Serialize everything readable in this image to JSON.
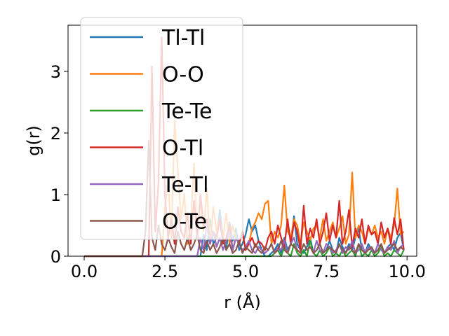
{
  "chart_data": {
    "type": "line",
    "title": "",
    "xlabel": "r (Å)",
    "ylabel": "g(r)",
    "xlim": [
      -0.5,
      10.3
    ],
    "ylim": [
      0,
      3.75
    ],
    "xticks": [
      0.0,
      2.5,
      5.0,
      7.5,
      10.0
    ],
    "xtick_labels": [
      "0.0",
      "2.5",
      "5.0",
      "7.5",
      "10.0"
    ],
    "yticks": [
      0,
      1,
      2,
      3
    ],
    "ytick_labels": [
      "0",
      "1",
      "2",
      "3"
    ],
    "grid": false,
    "legend_position": "top-left",
    "series": [
      {
        "name": "Tl-Tl",
        "color": "#1f77b4",
        "x": [
          0,
          3.6,
          3.7,
          3.8,
          3.9,
          4.0,
          4.1,
          4.2,
          4.3,
          4.4,
          4.5,
          4.6,
          4.7,
          4.8,
          4.9,
          5.0,
          5.1,
          5.2,
          5.3,
          5.4,
          5.5,
          5.6,
          5.7,
          5.8,
          5.9,
          6.0,
          6.1,
          6.2,
          6.3,
          6.4,
          6.5,
          6.6,
          6.7,
          6.8,
          6.9,
          7.0,
          7.1,
          7.2,
          7.3,
          7.4,
          7.5,
          7.6,
          7.7,
          7.8,
          7.9,
          8.0,
          8.1,
          8.2,
          8.3,
          8.4,
          8.5,
          8.6,
          8.7,
          8.8,
          8.9,
          9.0,
          9.1,
          9.2,
          9.3,
          9.4,
          9.5,
          9.6,
          9.7,
          9.8,
          9.9
        ],
        "y": [
          0,
          0,
          0.35,
          0.1,
          0.6,
          0.2,
          0.3,
          0.75,
          0.3,
          0.1,
          0.55,
          0.25,
          0.45,
          0.1,
          0.2,
          0.35,
          0.6,
          0.4,
          0.5,
          0.25,
          0.1,
          0.0,
          0.0,
          0.05,
          0.1,
          0.2,
          0.05,
          0.3,
          0.1,
          0.2,
          0.65,
          0.2,
          0.1,
          0.05,
          0.15,
          0.3,
          0.05,
          0.1,
          0.2,
          0.05,
          0.1,
          0.25,
          0.1,
          0.05,
          0.3,
          0.15,
          0.05,
          0.2,
          0.1,
          0.3,
          0.45,
          0.1,
          0.05,
          0.2,
          0.1,
          0.05,
          0.2,
          0.1,
          0.05,
          0.15,
          0.2,
          0.1,
          0.3,
          0.38,
          0.1
        ]
      },
      {
        "name": "O-O",
        "color": "#ff7f0e",
        "x": [
          0,
          2.4,
          2.5,
          2.6,
          2.7,
          2.8,
          2.9,
          3.0,
          3.1,
          3.2,
          3.3,
          3.4,
          3.5,
          3.6,
          3.7,
          3.8,
          3.9,
          4.0,
          4.1,
          4.2,
          4.3,
          4.4,
          4.5,
          4.6,
          4.7,
          4.8,
          4.9,
          5.0,
          5.1,
          5.2,
          5.3,
          5.4,
          5.5,
          5.6,
          5.7,
          5.8,
          5.9,
          6.0,
          6.1,
          6.2,
          6.3,
          6.4,
          6.5,
          6.6,
          6.7,
          6.8,
          6.9,
          7.0,
          7.1,
          7.2,
          7.3,
          7.4,
          7.5,
          7.6,
          7.7,
          7.8,
          7.9,
          8.0,
          8.1,
          8.2,
          8.3,
          8.4,
          8.5,
          8.6,
          8.7,
          8.8,
          8.9,
          9.0,
          9.1,
          9.2,
          9.3,
          9.4,
          9.5,
          9.6,
          9.7,
          9.8,
          9.9
        ],
        "y": [
          0,
          0,
          0.8,
          1.2,
          0.3,
          2.2,
          1.4,
          0.6,
          1.0,
          0.2,
          0.5,
          1.5,
          0.3,
          0.9,
          0.4,
          1.1,
          0.2,
          0.8,
          0.4,
          0.6,
          0.3,
          0.7,
          0.2,
          0.5,
          0.3,
          0.2,
          0.4,
          0.1,
          0.2,
          0.45,
          0.55,
          0.7,
          0.6,
          0.85,
          0.9,
          0.2,
          0.4,
          0.3,
          0.5,
          1.15,
          0.4,
          0.3,
          0.6,
          0.5,
          0.2,
          0.55,
          0.4,
          0.25,
          0.45,
          0.5,
          0.3,
          0.6,
          0.25,
          0.4,
          0.55,
          0.3,
          0.45,
          0.65,
          0.2,
          0.35,
          1.36,
          0.3,
          0.5,
          0.4,
          0.2,
          0.45,
          0.35,
          0.5,
          0.3,
          0.4,
          0.2,
          0.45,
          0.3,
          0.5,
          1.1,
          0.35,
          0.4
        ]
      },
      {
        "name": "Te-Te",
        "color": "#2ca02c",
        "x": [
          0,
          5.8,
          5.9,
          6.0,
          6.1,
          6.2,
          6.3,
          6.4,
          6.5,
          6.6,
          6.7,
          6.8,
          6.9,
          7.0,
          7.1,
          7.2,
          7.3,
          7.4,
          7.5,
          7.6,
          7.7,
          7.8,
          7.9,
          8.0,
          8.1,
          8.2,
          8.3,
          8.4,
          8.5,
          8.6,
          8.7,
          8.8,
          8.9,
          9.0,
          9.1,
          9.2,
          9.3,
          9.4,
          9.5,
          9.6,
          9.7,
          9.8,
          9.9
        ],
        "y": [
          0,
          0,
          0.05,
          0.1,
          0.0,
          0.15,
          0.05,
          0.0,
          0.2,
          0.05,
          0.0,
          0.1,
          0.0,
          0.25,
          0.05,
          0.0,
          0.1,
          0.0,
          0.05,
          0.15,
          0.0,
          0.05,
          0.0,
          0.1,
          0.0,
          0.05,
          0.1,
          0.0,
          0.2,
          0.0,
          0.05,
          0.0,
          0.1,
          0.0,
          0.05,
          0.15,
          0.0,
          0.05,
          0.0,
          0.1,
          0.05,
          0.0,
          0.1
        ]
      },
      {
        "name": "O-Tl",
        "color": "#d62728",
        "x": [
          0,
          2.0,
          2.1,
          2.2,
          2.3,
          2.4,
          2.5,
          2.6,
          2.7,
          2.8,
          2.9,
          3.0,
          3.1,
          3.2,
          3.3,
          3.4,
          3.5,
          3.6,
          3.7,
          3.8,
          3.9,
          4.0,
          4.1,
          4.2,
          4.3,
          4.4,
          4.5,
          4.6,
          4.7,
          4.8,
          4.9,
          5.0,
          5.1,
          5.2,
          5.3,
          5.4,
          5.5,
          5.6,
          5.7,
          5.8,
          5.9,
          6.0,
          6.1,
          6.2,
          6.3,
          6.4,
          6.5,
          6.6,
          6.7,
          6.8,
          6.9,
          7.0,
          7.1,
          7.2,
          7.3,
          7.4,
          7.5,
          7.6,
          7.7,
          7.8,
          7.9,
          8.0,
          8.1,
          8.2,
          8.3,
          8.4,
          8.5,
          8.6,
          8.7,
          8.8,
          8.9,
          9.0,
          9.1,
          9.2,
          9.3,
          9.4,
          9.5,
          9.6,
          9.7,
          9.8,
          9.9
        ],
        "y": [
          0,
          0,
          3.08,
          0.4,
          1.2,
          3.55,
          1.0,
          0.3,
          0.6,
          0.2,
          0.8,
          0.4,
          0.3,
          0.7,
          0.2,
          0.9,
          0.3,
          1.0,
          0.5,
          0.6,
          0.2,
          0.4,
          0.3,
          0.6,
          0.2,
          0.3,
          0.5,
          0.1,
          0.3,
          0.2,
          0.4,
          0.1,
          0.2,
          0.3,
          0.15,
          0.25,
          0.2,
          0.1,
          0.3,
          0.4,
          0.2,
          0.5,
          0.3,
          0.15,
          0.6,
          0.2,
          0.55,
          0.4,
          0.1,
          0.82,
          0.2,
          0.45,
          0.3,
          0.6,
          0.2,
          0.4,
          0.7,
          0.25,
          0.5,
          0.3,
          0.9,
          0.2,
          0.4,
          0.75,
          0.15,
          0.45,
          0.3,
          0.6,
          0.2,
          0.5,
          0.35,
          0.4,
          0.2,
          0.55,
          0.3,
          0.45,
          0.2,
          0.62,
          0.35,
          0.6,
          0.1
        ]
      },
      {
        "name": "Te-Tl",
        "color": "#9467bd",
        "x": [
          0,
          3.5,
          3.6,
          3.7,
          3.8,
          3.9,
          4.0,
          4.1,
          4.2,
          4.3,
          4.4,
          4.5,
          4.6,
          4.7,
          4.8,
          4.9,
          5.0,
          5.1,
          5.2,
          5.3,
          5.4,
          5.5,
          5.6,
          5.7,
          5.8,
          5.9,
          6.0,
          6.1,
          6.2,
          6.3,
          6.4,
          6.5,
          6.6,
          6.7,
          6.8,
          6.9,
          7.0,
          7.1,
          7.2,
          7.3,
          7.4,
          7.5,
          7.6,
          7.7,
          7.8,
          7.9,
          8.0,
          8.1,
          8.2,
          8.3,
          8.4,
          8.5,
          8.6,
          8.7,
          8.8,
          8.9,
          9.0,
          9.1,
          9.2,
          9.3,
          9.4,
          9.5,
          9.6,
          9.7,
          9.8,
          9.9
        ],
        "y": [
          0,
          0,
          0.3,
          0.1,
          0.5,
          0.2,
          0.4,
          0.15,
          0.3,
          0.1,
          0.25,
          0.4,
          0.1,
          0.3,
          0.2,
          0.1,
          0.15,
          0.25,
          0.1,
          0.05,
          0.15,
          0.1,
          0.05,
          0.1,
          0.2,
          0.05,
          0.15,
          0.1,
          0.25,
          0.05,
          0.2,
          0.3,
          0.1,
          0.05,
          0.2,
          0.1,
          0.15,
          0.05,
          0.25,
          0.1,
          0.05,
          0.2,
          0.15,
          0.05,
          0.1,
          0.2,
          0.05,
          0.15,
          0.1,
          0.25,
          0.05,
          0.1,
          0.2,
          0.05,
          0.15,
          0.1,
          0.05,
          0.2,
          0.1,
          0.05,
          0.15,
          0.1,
          0.25,
          0.05,
          0.15,
          0.2
        ]
      },
      {
        "name": "O-Te",
        "color": "#8c564b",
        "x": [
          0,
          1.8,
          1.9,
          2.0,
          2.1,
          2.2,
          2.3,
          2.4,
          2.5,
          2.6,
          2.7,
          2.8,
          2.9,
          3.0,
          3.1,
          3.2,
          3.3,
          3.4,
          3.5,
          3.6,
          3.7,
          3.8,
          3.9,
          4.0,
          4.1,
          4.2,
          4.3,
          4.4,
          4.5,
          4.6,
          4.7,
          4.8,
          4.9,
          5.0,
          5.1,
          5.2,
          5.3,
          5.4,
          5.5,
          5.6,
          5.7,
          5.8,
          5.9,
          6.0,
          6.1,
          6.2,
          6.3,
          6.4,
          6.5,
          6.6,
          6.7,
          6.8,
          6.9,
          7.0,
          7.1,
          7.2,
          7.3,
          7.4,
          7.5,
          7.6,
          7.7,
          7.8,
          7.9,
          8.0,
          8.1,
          8.2,
          8.3,
          8.4,
          8.5,
          8.6,
          8.7,
          8.8,
          8.9,
          9.0,
          9.1,
          9.2,
          9.3,
          9.4,
          9.5,
          9.6,
          9.7,
          9.8,
          9.9
        ],
        "y": [
          0,
          0,
          0.4,
          1.88,
          0.3,
          0.1,
          0.5,
          0.2,
          0.1,
          0.3,
          0.15,
          0.05,
          0.4,
          0.2,
          0.1,
          0.3,
          0.1,
          0.2,
          0.35,
          0.1,
          0.05,
          0.25,
          0.1,
          0.2,
          0.05,
          0.15,
          0.3,
          0.1,
          0.2,
          0.05,
          0.1,
          0.25,
          0.05,
          0.15,
          0.1,
          0.05,
          0.2,
          0.1,
          0.05,
          0.15,
          0.1,
          0.2,
          0.05,
          0.1,
          0.25,
          0.1,
          0.05,
          0.2,
          0.15,
          0.1,
          0.05,
          0.2,
          0.1,
          0.15,
          0.05,
          0.1,
          0.2,
          0.05,
          0.1,
          0.15,
          0.1,
          0.05,
          0.2,
          0.1,
          0.05,
          0.15,
          0.1,
          0.05,
          0.2,
          0.1,
          0.05,
          0.1,
          0.15,
          0.05,
          0.1,
          0.2,
          0.05,
          0.1,
          0.15,
          0.2,
          0.1,
          0.15,
          0.1
        ]
      }
    ]
  }
}
